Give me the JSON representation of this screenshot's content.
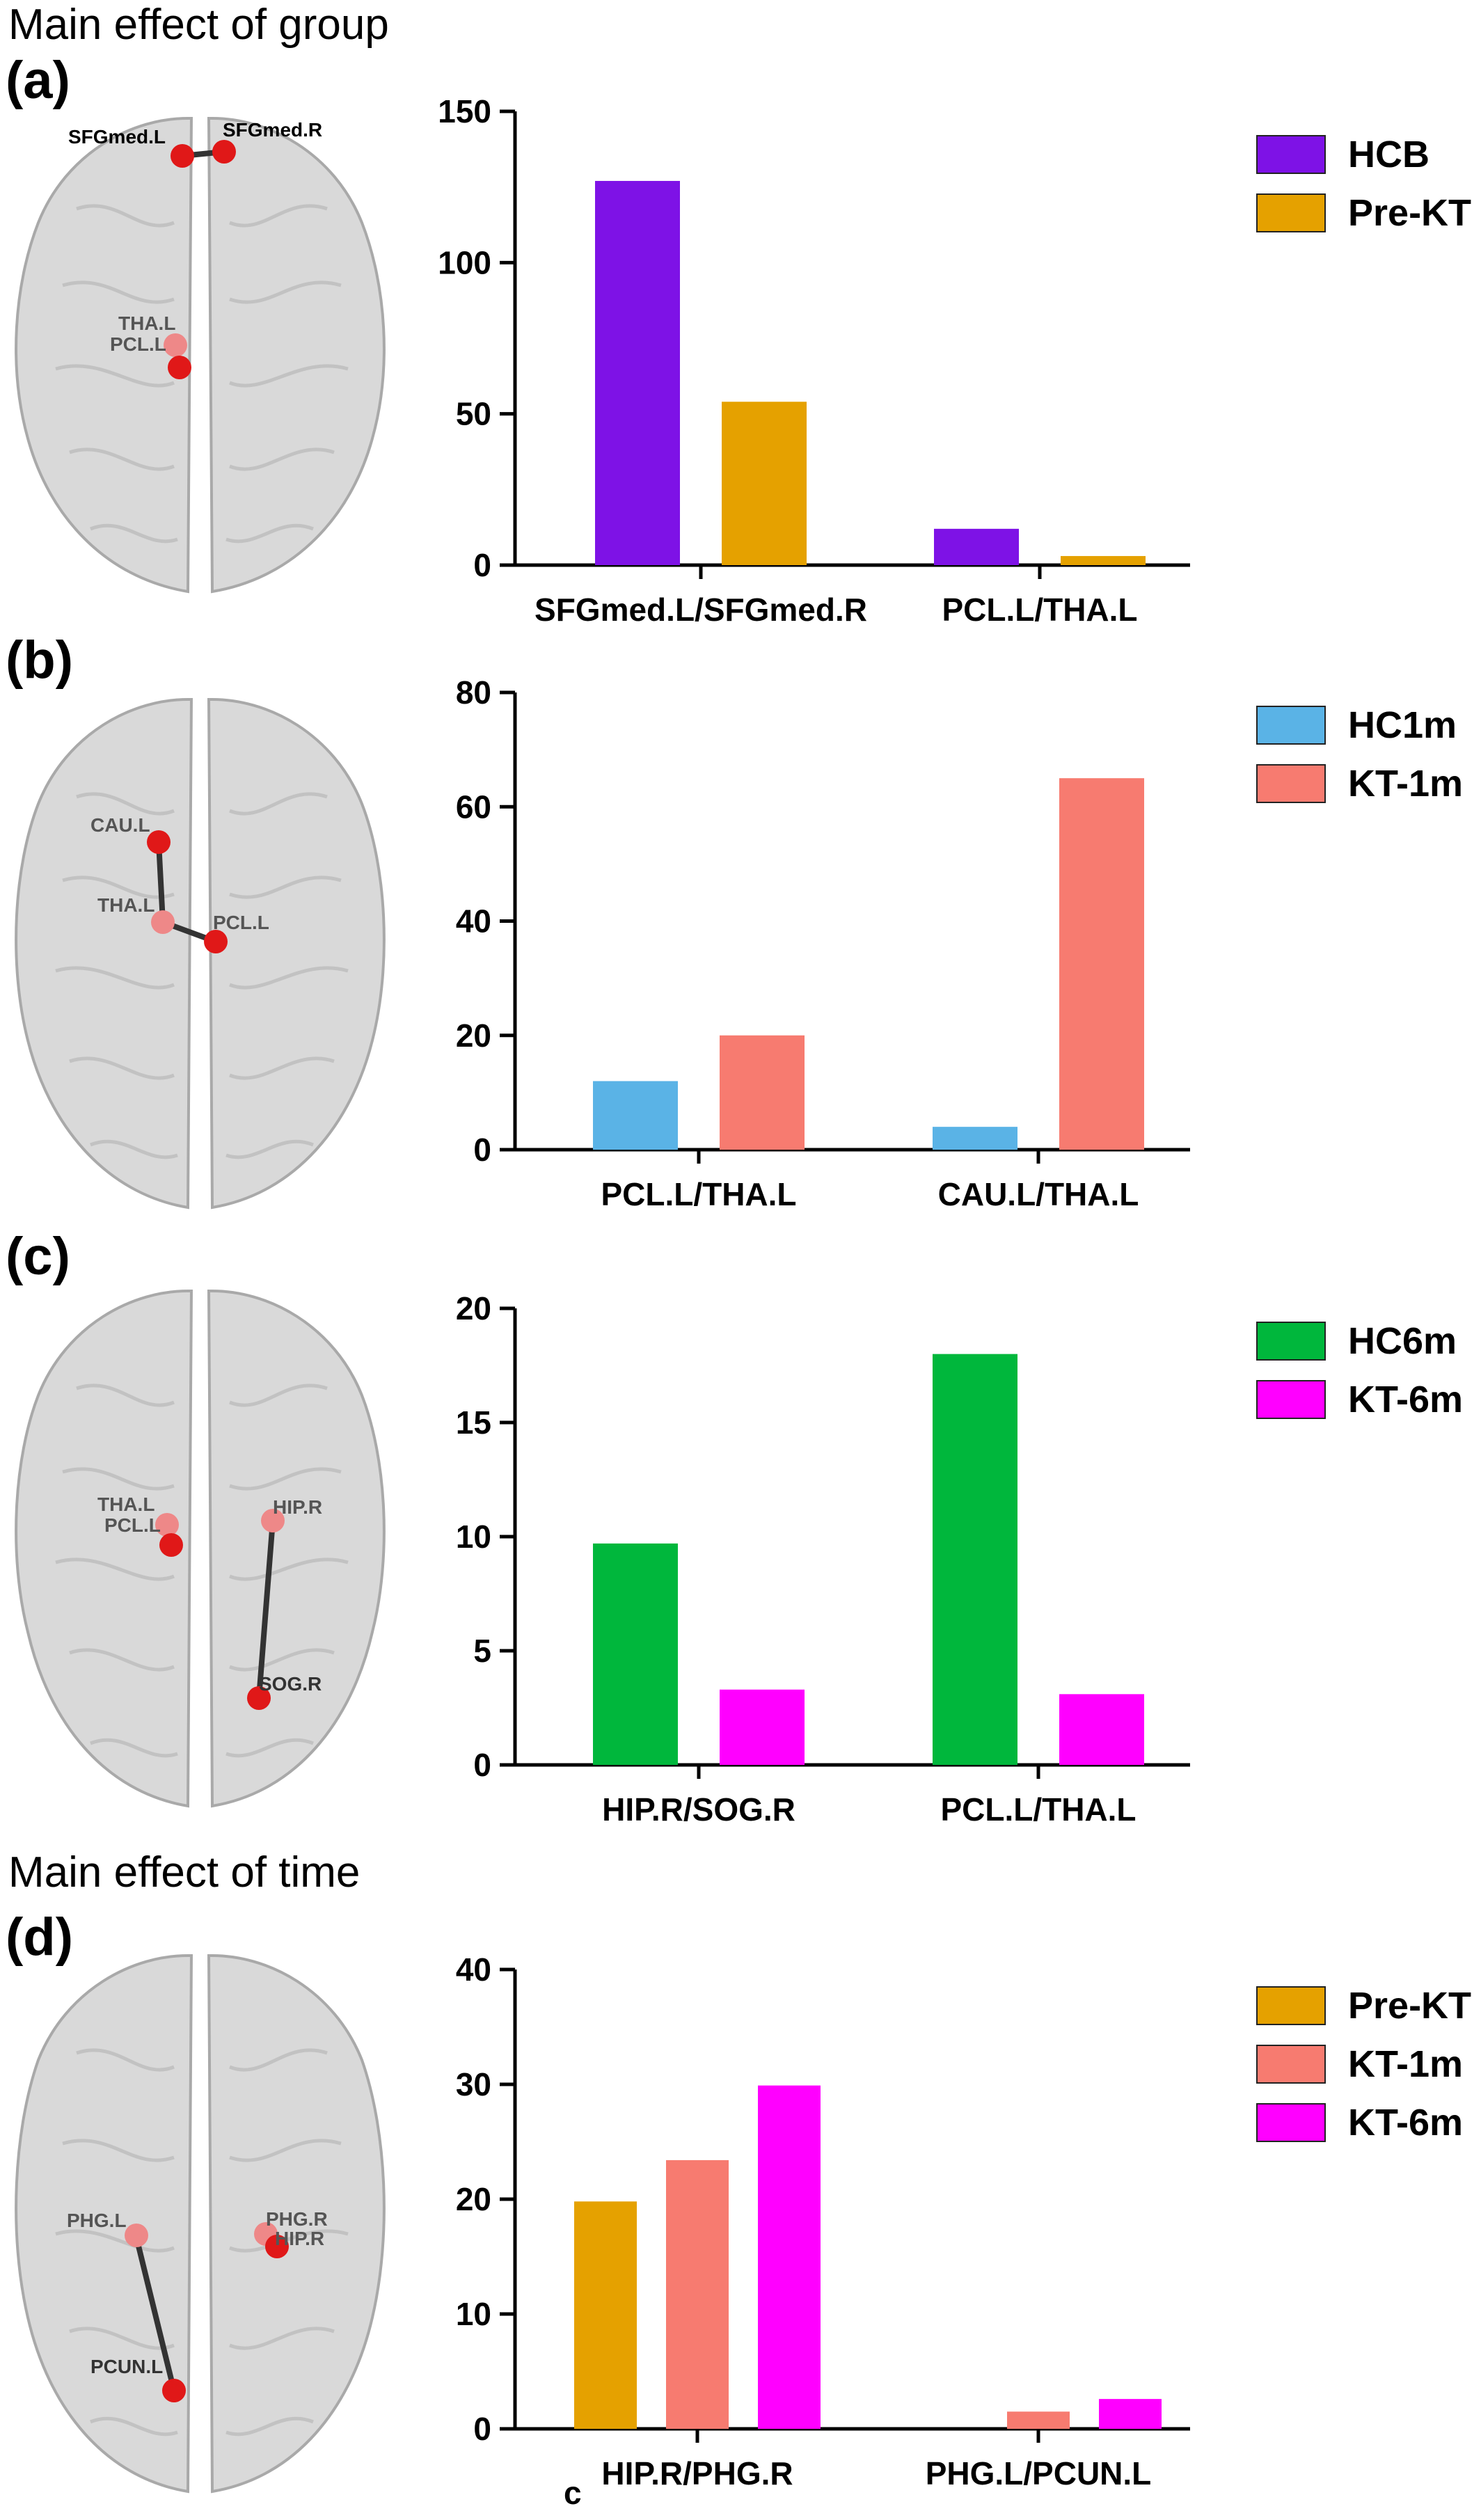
{
  "figure": {
    "section_titles": [
      "Main effect of group",
      "Main effect of time"
    ],
    "stray_label": "c"
  },
  "chart_data": [
    {
      "type": "bar",
      "panel_label": "(a)",
      "categories": [
        "SFGmed.L/SFGmed.R",
        "PCL.L/THA.L"
      ],
      "series": [
        {
          "name": "HCB",
          "color": "#7e12e6",
          "values": [
            127,
            12
          ]
        },
        {
          "name": "Pre-KT",
          "color": "#e5a100",
          "values": [
            54,
            3
          ]
        }
      ],
      "ylim": [
        0,
        150
      ],
      "yticks": [
        0,
        50,
        100,
        150
      ],
      "xlabel": "",
      "ylabel": "",
      "legend": "right",
      "brain_nodes": [
        "SFGmed.L",
        "SFGmed.R",
        "THA.L",
        "PCL.L"
      ]
    },
    {
      "type": "bar",
      "panel_label": "(b)",
      "categories": [
        "PCL.L/THA.L",
        "CAU.L/THA.L"
      ],
      "series": [
        {
          "name": "HC1m",
          "color": "#5ab3e6",
          "values": [
            12,
            4
          ]
        },
        {
          "name": "KT-1m",
          "color": "#f77b70",
          "values": [
            20,
            65
          ]
        }
      ],
      "ylim": [
        0,
        80
      ],
      "yticks": [
        0,
        20,
        40,
        60,
        80
      ],
      "xlabel": "",
      "ylabel": "",
      "legend": "right",
      "brain_nodes": [
        "CAU.L",
        "THA.L",
        "PCL.L"
      ]
    },
    {
      "type": "bar",
      "panel_label": "(c)",
      "categories": [
        "HIP.R/SOG.R",
        "PCL.L/THA.L"
      ],
      "series": [
        {
          "name": "HC6m",
          "color": "#00b73c",
          "values": [
            9.7,
            18
          ]
        },
        {
          "name": "KT-6m",
          "color": "#ff00ff",
          "values": [
            3.3,
            3.1
          ]
        }
      ],
      "ylim": [
        0,
        20
      ],
      "yticks": [
        0,
        5,
        10,
        15,
        20
      ],
      "xlabel": "",
      "ylabel": "",
      "legend": "right",
      "brain_nodes": [
        "THA.L",
        "PCL.L",
        "HIP.R",
        "SOG.R"
      ]
    },
    {
      "type": "bar",
      "panel_label": "(d)",
      "categories": [
        "HIP.R/PHG.R",
        "PHG.L/PCUN.L"
      ],
      "series": [
        {
          "name": "Pre-KT",
          "color": "#e5a100",
          "values": [
            19.8,
            0
          ]
        },
        {
          "name": "KT-1m",
          "color": "#f77b70",
          "values": [
            23.4,
            1.5
          ]
        },
        {
          "name": "KT-6m",
          "color": "#ff00ff",
          "values": [
            29.9,
            2.6
          ]
        }
      ],
      "ylim": [
        0,
        40
      ],
      "yticks": [
        0,
        10,
        20,
        30,
        40
      ],
      "xlabel": "",
      "ylabel": "",
      "legend": "right",
      "brain_nodes": [
        "PHG.L",
        "PHG.R",
        "HIP.R",
        "PCUN.L"
      ]
    }
  ]
}
